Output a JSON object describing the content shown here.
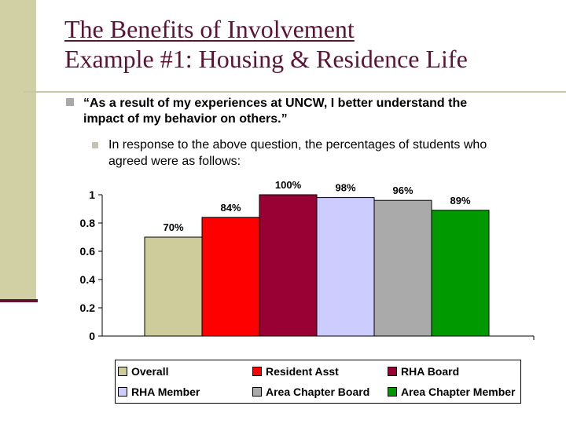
{
  "slide": {
    "title_line1": "The Benefits of Involvement",
    "title_line2": "Example #1: Housing & Residence Life",
    "bullet1": "“As a result of my experiences at UNCW, I better understand the impact of my behavior on others.”",
    "bullet2": "In response to the above question, the percentages of students who agreed were as follows:"
  },
  "chart_data": {
    "type": "bar",
    "series": [
      {
        "name": "Overall",
        "value": 0.7,
        "label": "70%",
        "color": "#cfcc9c"
      },
      {
        "name": "Resident Asst",
        "value": 0.84,
        "label": "84%",
        "color": "#ff0000"
      },
      {
        "name": "RHA Board",
        "value": 1.0,
        "label": "100%",
        "color": "#990033"
      },
      {
        "name": "RHA Member",
        "value": 0.98,
        "label": "98%",
        "color": "#ccccff"
      },
      {
        "name": "Area Chapter Board",
        "value": 0.96,
        "label": "96%",
        "color": "#aaaaaa"
      },
      {
        "name": "Area Chapter Member",
        "value": 0.89,
        "label": "89%",
        "color": "#009900"
      }
    ],
    "yticks": [
      "0",
      "0.2",
      "0.4",
      "0.6",
      "0.8",
      "1"
    ],
    "ylim": [
      0,
      1
    ],
    "grid": false,
    "legend_position": "bottom"
  }
}
